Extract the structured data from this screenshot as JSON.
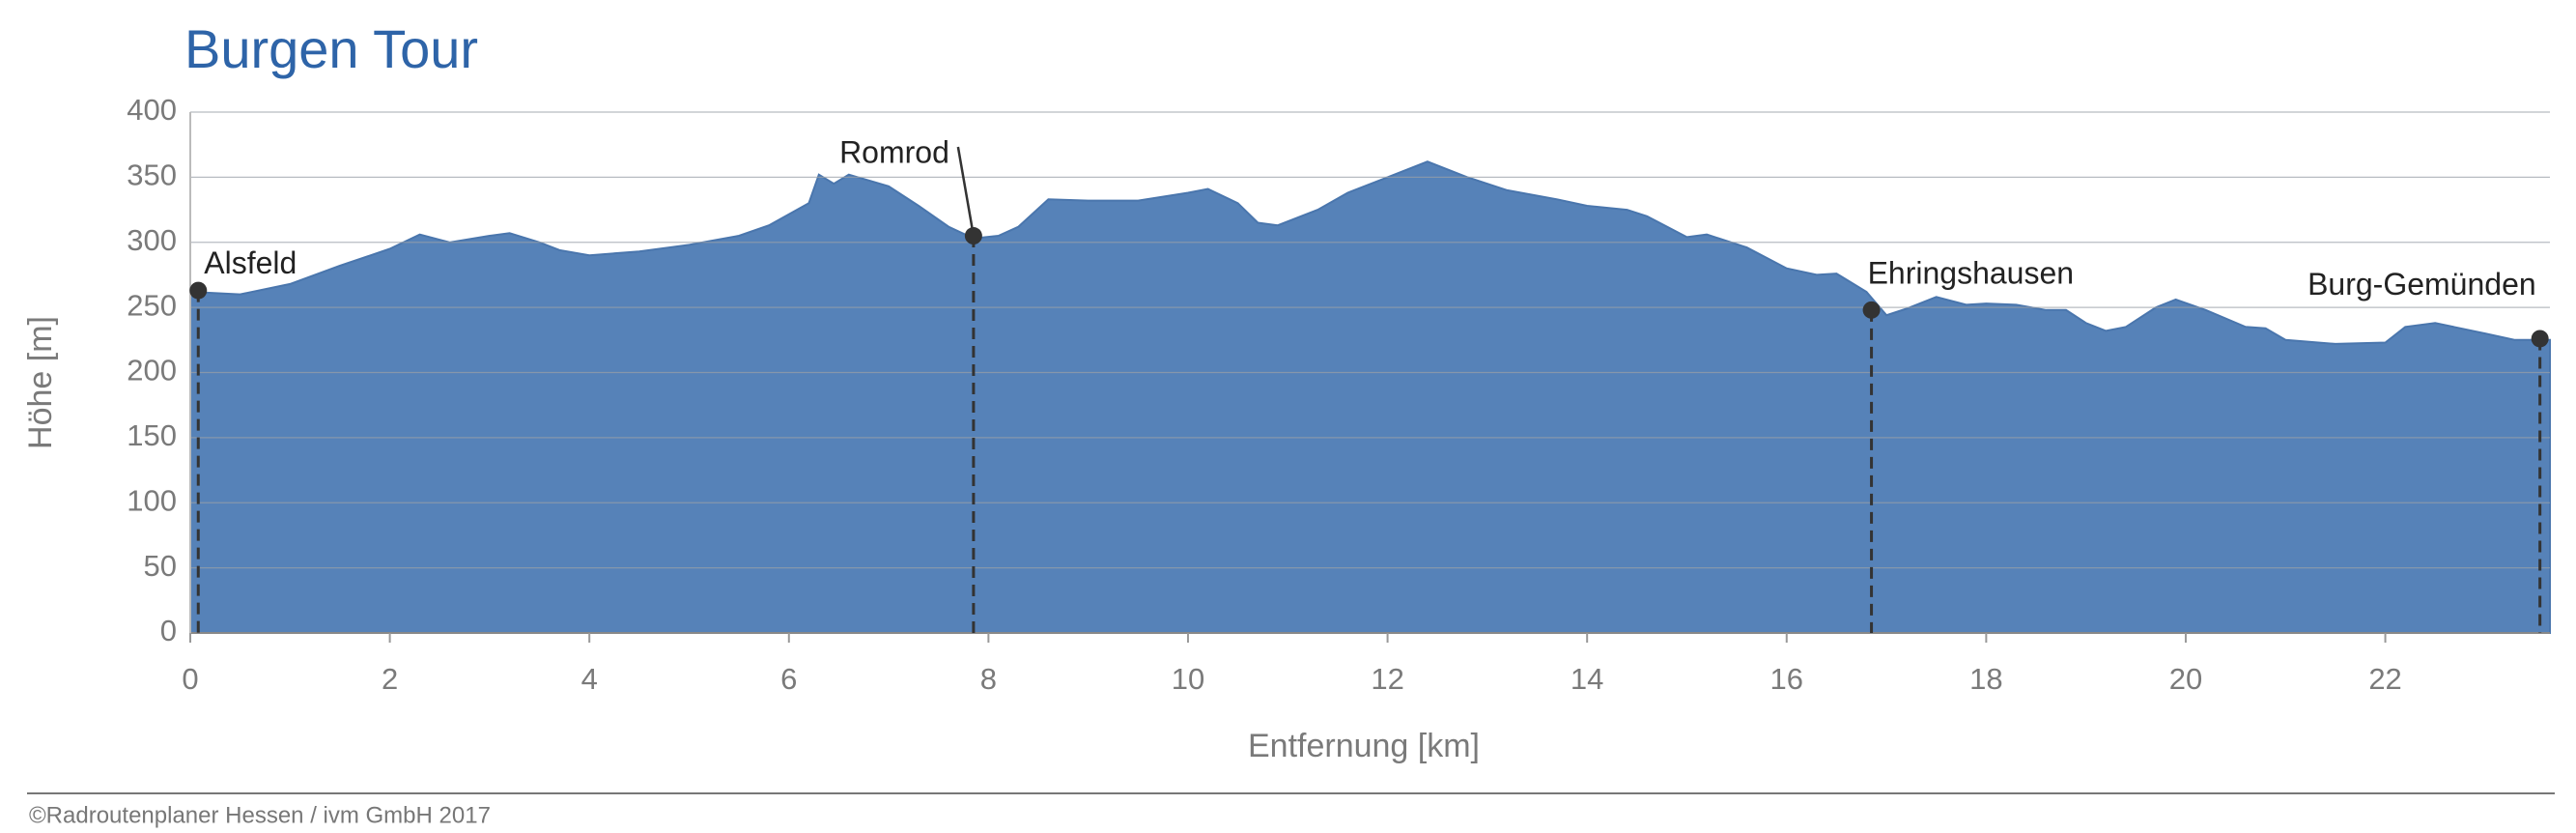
{
  "chart_data": {
    "type": "area",
    "title": "Burgen Tour",
    "x_label": "Entfernung [km]",
    "y_label": "Höhe [m]",
    "footer": "©Radroutenplaner Hessen / ivm GmbH 2017",
    "color": "#5682b8",
    "grid": true,
    "xlim": [
      0,
      23.65
    ],
    "ylim": [
      0,
      400
    ],
    "xticks": [
      0,
      2,
      4,
      6,
      8,
      10,
      12,
      14,
      16,
      18,
      20,
      22
    ],
    "yticks": [
      0,
      50,
      100,
      150,
      200,
      250,
      300,
      350,
      400
    ],
    "x": [
      0,
      0.5,
      1,
      1.5,
      2,
      2.3,
      2.6,
      3,
      3.2,
      3.5,
      3.7,
      4,
      4.5,
      5,
      5.5,
      5.8,
      6.2,
      6.3,
      6.45,
      6.6,
      7,
      7.3,
      7.6,
      7.85,
      8.1,
      8.3,
      8.6,
      9,
      9.5,
      10,
      10.2,
      10.5,
      10.7,
      10.9,
      11.3,
      11.6,
      12,
      12.4,
      12.8,
      13.2,
      13.7,
      14,
      14.4,
      14.6,
      15,
      15.2,
      15.6,
      16,
      16.3,
      16.5,
      16.8,
      17,
      17.2,
      17.5,
      17.8,
      18,
      18.3,
      18.6,
      18.8,
      19,
      19.2,
      19.4,
      19.7,
      19.9,
      20.2,
      20.6,
      20.8,
      21,
      21.5,
      22,
      22.2,
      22.5,
      23,
      23.3,
      23.65
    ],
    "values": [
      262,
      260,
      268,
      282,
      295,
      306,
      300,
      305,
      307,
      300,
      294,
      290,
      293,
      298,
      305,
      313,
      330,
      352,
      345,
      352,
      343,
      328,
      312,
      303,
      305,
      312,
      333,
      332,
      332,
      338,
      341,
      330,
      315,
      313,
      325,
      338,
      350,
      362,
      350,
      340,
      333,
      328,
      325,
      320,
      304,
      306,
      296,
      280,
      275,
      276,
      262,
      244,
      249,
      258,
      252,
      253,
      252,
      248,
      248,
      238,
      232,
      235,
      250,
      256,
      248,
      235,
      234,
      225,
      222,
      223,
      235,
      238,
      230,
      225,
      225
    ],
    "annotations": [
      {
        "label": "Alsfeld",
        "x": 0.08,
        "y": 263
      },
      {
        "label": "Romrod",
        "x": 7.85,
        "y": 305
      },
      {
        "label": "Ehringshausen",
        "x": 16.85,
        "y": 248
      },
      {
        "label": "Burg-Gemünden",
        "x": 23.55,
        "y": 226
      }
    ]
  }
}
